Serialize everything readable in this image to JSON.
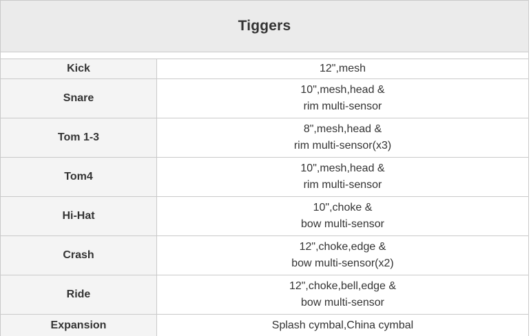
{
  "table": {
    "title": "Tiggers",
    "rows": [
      {
        "label": "Kick",
        "value_lines": [
          "12\",mesh"
        ]
      },
      {
        "label": "Snare",
        "value_lines": [
          "10\",mesh,head &",
          "rim multi-sensor"
        ]
      },
      {
        "label": "Tom 1-3",
        "value_lines": [
          "8\",mesh,head &",
          "rim multi-sensor(x3)"
        ]
      },
      {
        "label": "Tom4",
        "value_lines": [
          "10\",mesh,head &",
          "rim multi-sensor"
        ]
      },
      {
        "label": "Hi-Hat",
        "value_lines": [
          "10\",choke &",
          "bow multi-sensor"
        ]
      },
      {
        "label": "Crash",
        "value_lines": [
          "12\",choke,edge &",
          "bow multi-sensor(x2)"
        ]
      },
      {
        "label": "Ride",
        "value_lines": [
          "12\",choke,bell,edge &",
          "bow multi-sensor"
        ]
      },
      {
        "label": "Expansion",
        "value_lines": [
          "Splash cymbal,China cymbal"
        ]
      }
    ],
    "colors": {
      "header_bg": "#ebebeb",
      "label_col_bg": "#f4f4f4",
      "border": "#c9c9c9",
      "text": "#333333"
    }
  }
}
